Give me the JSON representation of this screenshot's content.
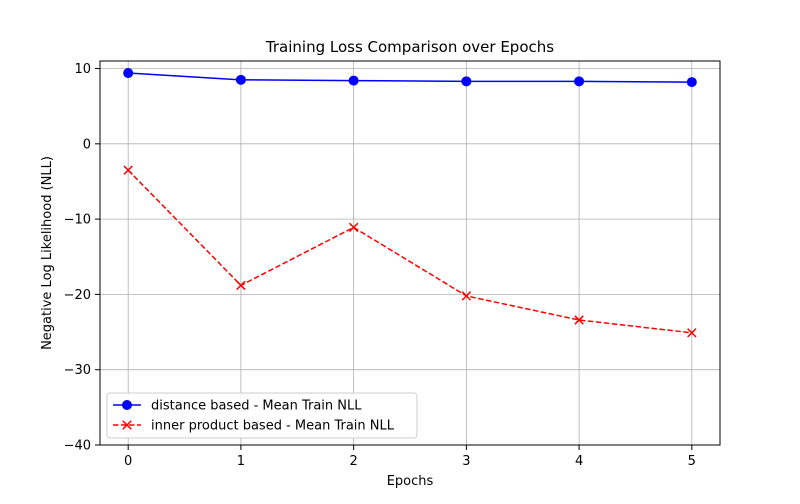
{
  "chart_data": {
    "type": "line",
    "title": "Training Loss Comparison over Epochs",
    "xlabel": "Epochs",
    "ylabel": "Negative Log Likelihood (NLL)",
    "x": [
      0,
      1,
      2,
      3,
      4,
      5
    ],
    "xlim": [
      -0.25,
      5.25
    ],
    "ylim": [
      -40,
      11
    ],
    "xticks": [
      0,
      1,
      2,
      3,
      4,
      5
    ],
    "yticks": [
      10,
      0,
      -10,
      -20,
      -30,
      -40
    ],
    "ytick_labels": [
      "10",
      "0",
      "−10",
      "−20",
      "−30",
      "−40"
    ],
    "grid": true,
    "legend_position": "lower-left",
    "series": [
      {
        "name": "distance based - Mean Train NLL",
        "color": "#0000ff",
        "linestyle": "solid",
        "marker": "circle",
        "values": [
          9.4,
          8.5,
          8.4,
          8.3,
          8.3,
          8.2
        ]
      },
      {
        "name": "inner product based - Mean Train NLL",
        "color": "#ff0000",
        "linestyle": "dashed",
        "marker": "x",
        "values": [
          -3.5,
          -18.8,
          -11.1,
          -20.2,
          -23.4,
          -25.1
        ]
      }
    ]
  }
}
